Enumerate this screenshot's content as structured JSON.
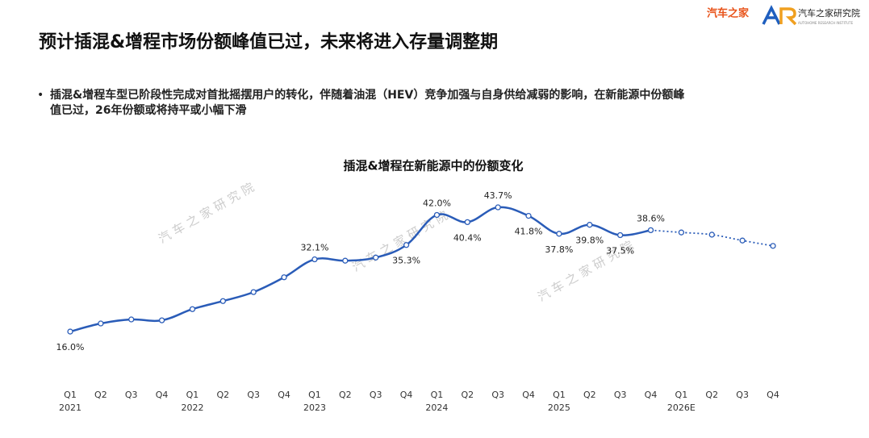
{
  "logo": {
    "brand": "汽车之家",
    "institute": "汽车之家研究院",
    "institute_sub": "AUTOHOME RESEARCH INSTITUTE"
  },
  "header": {
    "title": "预计插混&增程市场份额峰值已过，未来将进入存量调整期"
  },
  "bullet": {
    "lines": [
      "插混&增程车型已阶段性完成对首批摇摆用户的转化，伴随着油混（HEV）竞争加强与自身供给减弱的影响，在新能源中份额峰",
      "值已过，26年份额或将持平或小幅下滑"
    ]
  },
  "watermark": "汽 车 之 家 研 究 院",
  "chart_data": {
    "type": "line",
    "title": "插混&增程在新能源中的份额变化",
    "categories": [
      "Q1",
      "Q2",
      "Q3",
      "Q4",
      "Q1",
      "Q2",
      "Q3",
      "Q4",
      "Q1",
      "Q2",
      "Q3",
      "Q4",
      "Q1",
      "Q2",
      "Q3",
      "Q4",
      "Q1",
      "Q2",
      "Q3",
      "Q4",
      "Q1",
      "Q2",
      "Q3",
      "Q4"
    ],
    "category_years": [
      "2021",
      null,
      null,
      null,
      "2022",
      null,
      null,
      null,
      "2023",
      null,
      null,
      null,
      "2024",
      null,
      null,
      null,
      "2025",
      null,
      null,
      null,
      "2026E",
      null,
      null,
      null
    ],
    "color": "#2a5cb8",
    "values": [
      16.0,
      17.8,
      18.7,
      18.5,
      21.0,
      22.8,
      24.8,
      28.1,
      32.1,
      31.8,
      32.5,
      35.3,
      42.0,
      40.4,
      43.7,
      41.8,
      37.8,
      39.8,
      37.5,
      38.6,
      null,
      null,
      null,
      null
    ],
    "value_labels": [
      "16.0%",
      null,
      null,
      null,
      null,
      null,
      null,
      null,
      "32.1%",
      null,
      null,
      "35.3%",
      "42.0%",
      "40.4%",
      "43.7%",
      "41.8%",
      "37.8%",
      "39.8%",
      "37.5%",
      "38.6%",
      null,
      null,
      null,
      null
    ],
    "forecast_values": [
      null,
      null,
      null,
      null,
      null,
      null,
      null,
      null,
      null,
      null,
      null,
      null,
      null,
      null,
      null,
      null,
      null,
      null,
      null,
      null,
      38.1,
      37.6,
      36.3,
      35.1
    ],
    "ylim": [
      0,
      50
    ]
  }
}
